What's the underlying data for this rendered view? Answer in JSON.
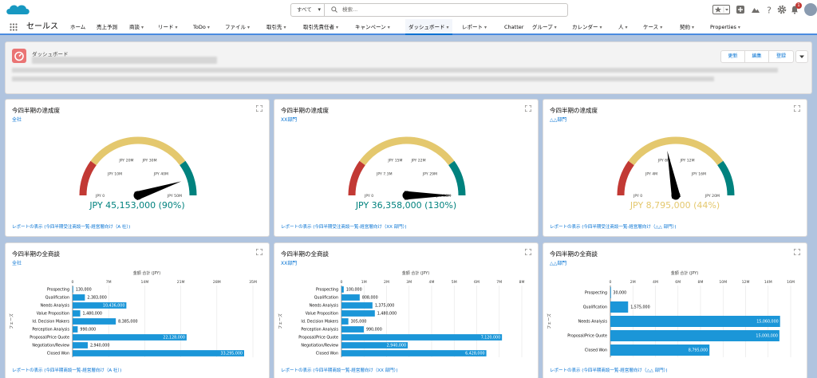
{
  "header": {
    "search_scope": "すべて",
    "search_placeholder": "検索..."
  },
  "nav": {
    "app_name": "セールス",
    "items": [
      {
        "label": "ホーム",
        "x": 88,
        "chev": false
      },
      {
        "label": "売上予測",
        "x": 121,
        "chev": false
      },
      {
        "label": "商談",
        "x": 162,
        "chev": true
      },
      {
        "label": "リード",
        "x": 198,
        "chev": true
      },
      {
        "label": "ToDo",
        "x": 242,
        "chev": true
      },
      {
        "label": "ファイル",
        "x": 282,
        "chev": true
      },
      {
        "label": "取引先",
        "x": 334,
        "chev": true
      },
      {
        "label": "取引先責任者",
        "x": 380,
        "chev": true
      },
      {
        "label": "キャンペーン",
        "x": 445,
        "chev": true
      },
      {
        "label": "ダッシュボード",
        "x": 508,
        "chev": true,
        "active": true
      },
      {
        "label": "レポート",
        "x": 579,
        "chev": true
      },
      {
        "label": "Chatter",
        "x": 632,
        "chev": false
      },
      {
        "label": "グループ",
        "x": 667,
        "chev": true
      },
      {
        "label": "カレンダー",
        "x": 717,
        "chev": true
      },
      {
        "label": "人",
        "x": 775,
        "chev": true
      },
      {
        "label": "ケース",
        "x": 806,
        "chev": true
      },
      {
        "label": "契約",
        "x": 852,
        "chev": true
      },
      {
        "label": "Properties",
        "x": 890,
        "chev": true
      }
    ]
  },
  "notifications_count": "1",
  "dashboard": {
    "label": "ダッシュボード",
    "buttons": [
      "更新",
      "編集",
      "登録"
    ]
  },
  "colors": {
    "red": "#c23934",
    "yellow": "#e4c86e",
    "teal": "#00827e",
    "bar": "#1b96d8",
    "link": "#0070d2"
  },
  "gauges": [
    {
      "title": "今四半期の達成度",
      "subtitle": "全社",
      "value_text": "JPY 45,153,000 (90%)",
      "value_color": "#00827e",
      "needle_fraction": 0.9,
      "ticks": [
        "JPY 0",
        "JPY 10M",
        "JPY 20M",
        "JPY 30M",
        "JPY 40M",
        "JPY 50M"
      ],
      "link": "レポートの表示 (今四半期受注商談一覧-経営層向け（A 社）)"
    },
    {
      "title": "今四半期の達成度",
      "subtitle": "XX部門",
      "value_text": "JPY 36,358,000 (130%)",
      "value_color": "#00827e",
      "needle_fraction": 1.0,
      "ticks": [
        "JPY 0",
        "JPY 7.3M",
        "JPY 15M",
        "JPY 22M",
        "JPY 29M",
        "JPY 36M"
      ],
      "link": "レポートの表示 (今四半期受注商談一覧-経営層向け（XX 部門）)"
    },
    {
      "title": "今四半期の達成度",
      "subtitle": "△△部門",
      "value_text": "JPY 8,795,000 (44%)",
      "value_color": "#e4c86e",
      "needle_fraction": 0.44,
      "ticks": [
        "JPY 0",
        "JPY 4M",
        "JPY 8M",
        "JPY 12M",
        "JPY 16M",
        "JPY 20M"
      ],
      "link": "レポートの表示 (今四半期受注商談一覧-経営層向け（△△ 部門）)"
    }
  ],
  "chart_data": [
    {
      "type": "bar",
      "title": "今四半期の全商談",
      "subtitle": "全社",
      "xlabel": "金額 合計 (JPY)",
      "ylabel": "フェーズ",
      "xlim": [
        0,
        35000000
      ],
      "x_ticks": [
        "0",
        "7M",
        "14M",
        "21M",
        "28M",
        "35M"
      ],
      "categories": [
        "Prospecting",
        "Qualification",
        "Needs Analysis",
        "Value Proposition",
        "Id. Decision Makers",
        "Perception Analysis",
        "Proposal/Price Quote",
        "Negotiation/Review",
        "Closed Won"
      ],
      "values": [
        130000,
        2383000,
        10436000,
        1480000,
        8385000,
        990000,
        22128000,
        2940000,
        33295000
      ],
      "labels": [
        "130,000",
        "2,383,000",
        "10,436,000",
        "1,480,000",
        "8,385,000",
        "990,000",
        "22,128,000",
        "2,940,000",
        "33,295,000"
      ],
      "link": "レポートの表示 (今四半期商談一覧-経営層向け（A 社）)"
    },
    {
      "type": "bar",
      "title": "今四半期の全商談",
      "subtitle": "XX部門",
      "xlabel": "金額 合計 (JPY)",
      "ylabel": "フェーズ",
      "xlim": [
        0,
        8000000
      ],
      "x_ticks": [
        "0",
        "1M",
        "2M",
        "3M",
        "4M",
        "5M",
        "6M",
        "7M",
        "8M"
      ],
      "categories": [
        "Prospecting",
        "Qualification",
        "Needs Analysis",
        "Value Proposition",
        "Id. Decision Makers",
        "Perception Analysis",
        "Proposal/Price Quote",
        "Negotiation/Review",
        "Closed Won"
      ],
      "values": [
        100000,
        808000,
        1375000,
        1480000,
        305000,
        990000,
        7120000,
        2940000,
        6428000
      ],
      "labels": [
        "100,000",
        "808,000",
        "1,375,000",
        "1,480,000",
        "305,000",
        "990,000",
        "7,120,000",
        "2,940,000",
        "6,428,000"
      ],
      "link": "レポートの表示 (今四半期商談一覧-経営層向け（XX 部門）)"
    },
    {
      "type": "bar",
      "title": "今四半期の全商談",
      "subtitle": "△△部門",
      "xlabel": "金額 合計 (JPY)",
      "ylabel": "フェーズ",
      "xlim": [
        0,
        16000000
      ],
      "x_ticks": [
        "0",
        "2M",
        "4M",
        "6M",
        "8M",
        "10M",
        "12M",
        "14M",
        "16M"
      ],
      "categories": [
        "Prospecting",
        "Qualification",
        "Needs Analysis",
        "Proposal/Price Quote",
        "Closed Won"
      ],
      "values": [
        30000,
        1575000,
        15060000,
        15000000,
        8795000
      ],
      "labels": [
        "30,000",
        "1,575,000",
        "15,060,000",
        "15,000,000",
        "8,795,000"
      ],
      "link": "レポートの表示 (今四半期商談一覧-経営層向け（△△ 部門）)"
    }
  ]
}
